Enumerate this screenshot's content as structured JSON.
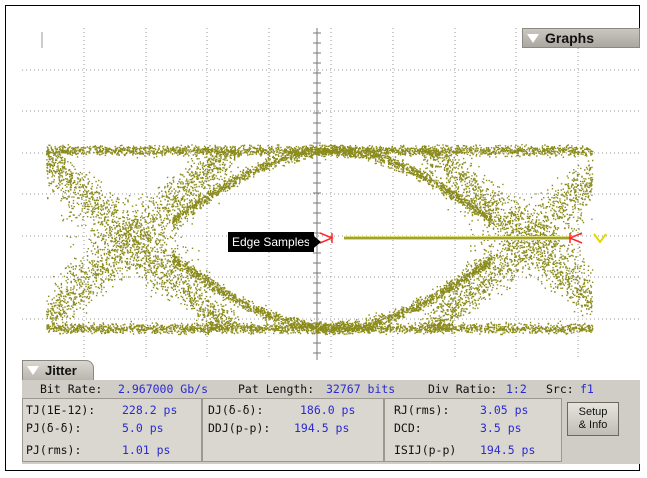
{
  "graphs_tab": {
    "label": "Graphs"
  },
  "eye": {
    "marker_label": "Edge Samples",
    "trace_color": "#8a8b1a",
    "marker_color": "#ff2a2a",
    "bar_color": "#dede7a"
  },
  "jitter_tab": {
    "label": "Jitter"
  },
  "summary": {
    "bit_rate_label": "Bit Rate:",
    "bit_rate_value": "2.967000 Gb/s",
    "pat_length_label": "Pat Length:",
    "pat_length_value": "32767 bits",
    "div_ratio_label": "Div Ratio:",
    "div_ratio_value": "1:2",
    "src_label": "Src:",
    "src_value": "f1"
  },
  "measurements": [
    {
      "label": "TJ(1E-12):",
      "value": "228.2 ps"
    },
    {
      "label": "PJ(δ-δ):",
      "value": "5.0 ps"
    },
    {
      "label": "PJ(rms):",
      "value": "1.01 ps"
    },
    {
      "label": "DJ(δ-δ):",
      "value": "186.0 ps"
    },
    {
      "label": "DDJ(p-p):",
      "value": "194.5 ps"
    },
    {
      "label": "RJ(rms):",
      "value": "3.05 ps"
    },
    {
      "label": "DCD:",
      "value": "3.5 ps"
    },
    {
      "label": "ISIJ(p-p)",
      "value": "194.5 ps"
    }
  ],
  "setup_button": {
    "line1": "Setup",
    "line2": "& Info"
  },
  "colors": {
    "panel_bg": "#cfcdc5",
    "value_text": "#2a2ad0",
    "grid": "#9a9a9a"
  }
}
